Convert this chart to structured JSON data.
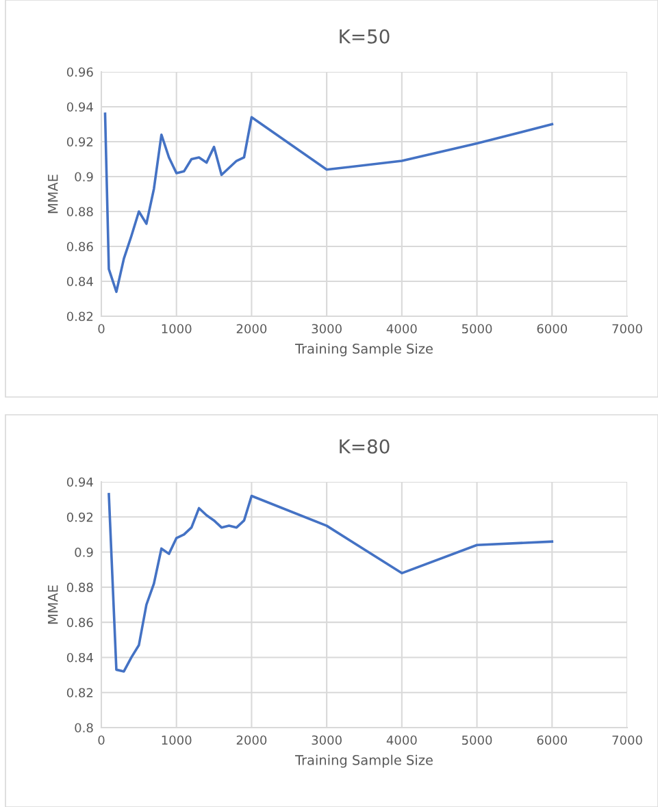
{
  "chart_data": [
    {
      "type": "line",
      "title": "K=50",
      "xlabel": "Training Sample Size",
      "ylabel": "MMAE",
      "x": [
        50,
        100,
        200,
        300,
        400,
        500,
        600,
        700,
        800,
        900,
        1000,
        1100,
        1200,
        1300,
        1400,
        1500,
        1600,
        1700,
        1800,
        1900,
        2000,
        3000,
        4000,
        5000,
        6000
      ],
      "series": [
        {
          "color": "#4472c4",
          "values": [
            0.936,
            0.847,
            0.834,
            0.853,
            0.866,
            0.88,
            0.873,
            0.893,
            0.924,
            0.911,
            0.902,
            0.903,
            0.91,
            0.911,
            0.908,
            0.917,
            0.901,
            0.905,
            0.909,
            0.911,
            0.934,
            0.904,
            0.909,
            0.919,
            0.93
          ]
        }
      ],
      "xlim": [
        0,
        7000
      ],
      "xticks": [
        0,
        1000,
        2000,
        3000,
        4000,
        5000,
        6000,
        7000
      ],
      "ylim": [
        0.82,
        0.96
      ],
      "yticks": [
        0.82,
        0.84,
        0.86,
        0.88,
        0.9,
        0.92,
        0.94,
        0.96
      ],
      "grid": true,
      "marker": "none",
      "line_style": "solid"
    },
    {
      "type": "line",
      "title": "K=80",
      "xlabel": "Training Sample Size",
      "ylabel": "MMAE",
      "x": [
        100,
        200,
        300,
        400,
        500,
        600,
        700,
        800,
        900,
        1000,
        1100,
        1200,
        1300,
        1400,
        1500,
        1600,
        1700,
        1800,
        1900,
        2000,
        3000,
        4000,
        5000,
        6000
      ],
      "series": [
        {
          "color": "#4472c4",
          "values": [
            0.933,
            0.833,
            0.832,
            0.84,
            0.847,
            0.87,
            0.882,
            0.902,
            0.899,
            0.908,
            0.91,
            0.914,
            0.925,
            0.921,
            0.918,
            0.914,
            0.915,
            0.914,
            0.918,
            0.932,
            0.915,
            0.888,
            0.904,
            0.906
          ]
        }
      ],
      "xlim": [
        0,
        7000
      ],
      "xticks": [
        0,
        1000,
        2000,
        3000,
        4000,
        5000,
        6000,
        7000
      ],
      "ylim": [
        0.8,
        0.94
      ],
      "yticks": [
        0.8,
        0.82,
        0.84,
        0.86,
        0.88,
        0.9,
        0.92,
        0.94
      ],
      "grid": true,
      "marker": "none",
      "line_style": "solid"
    }
  ]
}
